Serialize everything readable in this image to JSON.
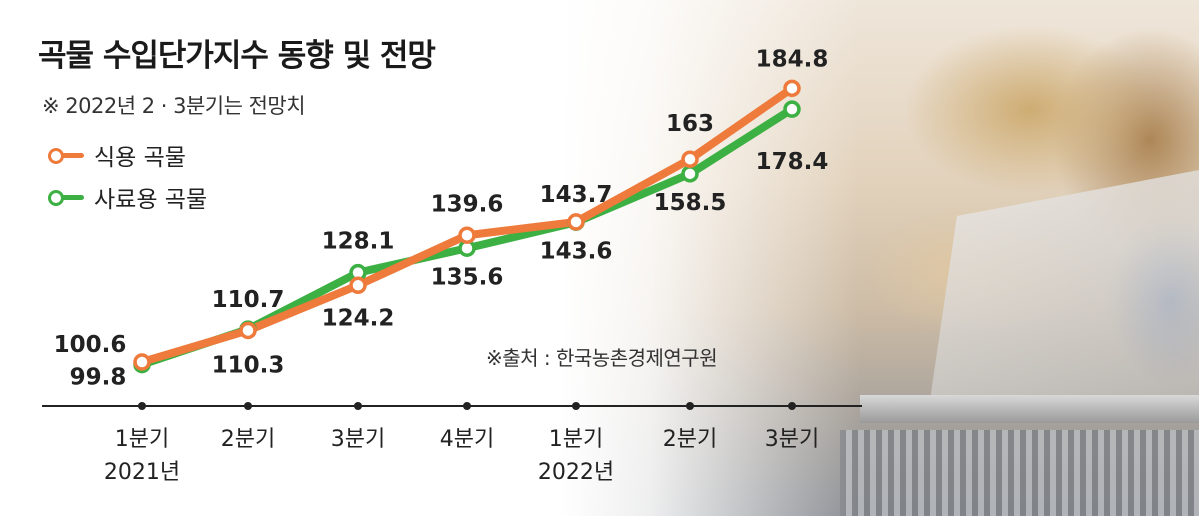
{
  "title": "곡물 수입단가지수 동향 및 전망",
  "subtitle": "※ 2022년 2 · 3분기는 전망치",
  "source": "※출처 : 한국농촌경제연구원",
  "colors": {
    "food": "#ee7a3b",
    "feed": "#3cb043",
    "axis": "#222222"
  },
  "chart_data": {
    "type": "line",
    "categories": [
      {
        "quarter": "1분기",
        "year": "2021년"
      },
      {
        "quarter": "2분기",
        "year": ""
      },
      {
        "quarter": "3분기",
        "year": ""
      },
      {
        "quarter": "4분기",
        "year": ""
      },
      {
        "quarter": "1분기",
        "year": "2022년"
      },
      {
        "quarter": "2분기",
        "year": ""
      },
      {
        "quarter": "3분기",
        "year": ""
      }
    ],
    "series": [
      {
        "name": "식용 곡물",
        "values": [
          100.6,
          110.3,
          124.2,
          139.6,
          143.7,
          163,
          184.8
        ]
      },
      {
        "name": "사료용 곡물",
        "values": [
          99.8,
          110.7,
          128.1,
          135.6,
          143.6,
          158.5,
          178.4
        ]
      }
    ],
    "legend_position": "top-left",
    "grid": false
  }
}
